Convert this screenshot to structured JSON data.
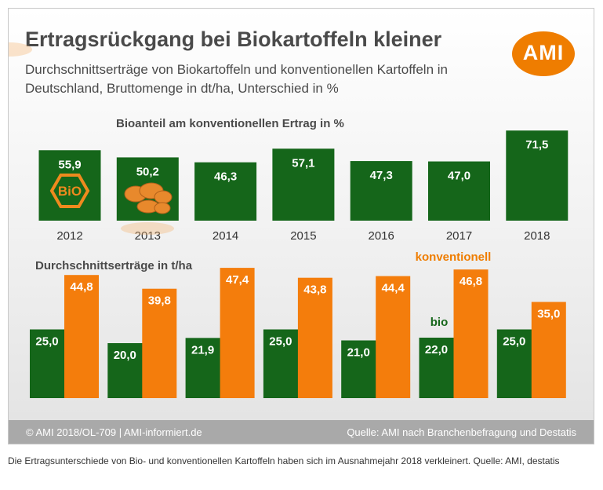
{
  "header": {
    "title": "Ertragsrückgang bei Biokartoffeln kleiner",
    "subtitle_line1": "Durchschnittserträge von Biokartoffeln und konventionellen Kartoffeln in",
    "subtitle_line2": "Deutschland, Bruttomenge in dt/ha, Unterschied in %"
  },
  "logo": {
    "text": "AMI"
  },
  "footer": {
    "left": "© AMI 2018/OL-709 | AMI-informiert.de",
    "right": "Quelle: AMI nach Branchenbefragung und Destatis"
  },
  "caption": "Die Ertragsunterschiede von Bio- und konventionellen Kartoffeln haben sich im Ausnahmejahr 2018 verkleinert. Quelle: AMI, destatis",
  "badges": {
    "bio_seal": "BiO"
  },
  "colors": {
    "green": "#15661a",
    "orange": "#f47d0c",
    "orange_label": "#ef7d00",
    "text": "#4a4a4a",
    "footer": "#a9a9a9"
  },
  "chart_data": [
    {
      "type": "bar",
      "title": "Bioanteil am konventionellen Ertrag in %",
      "categories": [
        "2012",
        "2013",
        "2014",
        "2015",
        "2016",
        "2017",
        "2018"
      ],
      "values": [
        55.9,
        50.2,
        46.3,
        57.1,
        47.3,
        47.0,
        71.5
      ],
      "value_labels": [
        "55,9",
        "50,2",
        "46,3",
        "57,1",
        "47,3",
        "47,0",
        "71,5"
      ],
      "color": "#15661a"
    },
    {
      "type": "bar",
      "title": "Durchschnittserträge in t/ha",
      "categories": [
        "2012",
        "2013",
        "2014",
        "2015",
        "2016",
        "2017",
        "2018"
      ],
      "series": [
        {
          "name": "bio",
          "values": [
            25.0,
            20.0,
            21.9,
            25.0,
            21.0,
            22.0,
            25.0
          ],
          "value_labels": [
            "25,0",
            "20,0",
            "21,9",
            "25,0",
            "21,0",
            "22,0",
            "25,0"
          ],
          "color": "#15661a"
        },
        {
          "name": "konventionell",
          "values": [
            44.8,
            39.8,
            47.4,
            43.8,
            44.4,
            46.8,
            35.0
          ],
          "value_labels": [
            "44,8",
            "39,8",
            "47,4",
            "43,8",
            "44,4",
            "46,8",
            "35,0"
          ],
          "color": "#f47d0c"
        }
      ]
    }
  ]
}
